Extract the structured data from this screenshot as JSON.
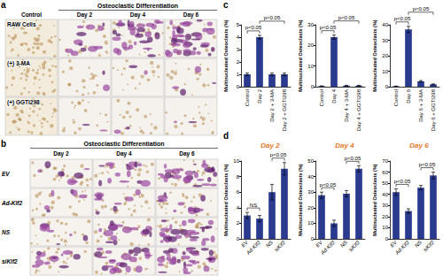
{
  "image_panels": [
    {
      "label": "a",
      "group_header": "Osteoclastic Differentiation",
      "ungrouped_columns": [
        "Control"
      ],
      "grouped_columns": [
        "Day 2",
        "Day 4",
        "Day 6"
      ],
      "rows": [
        "RAW Cells",
        "(+) 3-MA",
        "(+) GGTI298"
      ]
    },
    {
      "label": "b",
      "group_header": "Osteoclastic Differentiation",
      "grouped_columns": [
        "Day 2",
        "Day 4",
        "Day 6"
      ],
      "rows": [
        "EV",
        "Ad-Klf2",
        "NS",
        "siKlf2"
      ]
    }
  ],
  "chart_data": [
    {
      "type": "bar",
      "panel": "c",
      "y_label": "Multinucleated Osteoclasts (%)",
      "categories": [
        "Control",
        "Day 2",
        "Day 2 + 3-MA",
        "Day 2 + GGTI298"
      ],
      "values": [
        1.0,
        4.0,
        1.0,
        1.0
      ],
      "errors": [
        0.1,
        0.15,
        0.1,
        0.1
      ],
      "color": "#2a3b8f",
      "ylim": [
        0,
        5
      ],
      "yticks": [
        0,
        1,
        2,
        3,
        4,
        5
      ],
      "grid": false,
      "annotations": [
        {
          "text": "p<0.05",
          "between": [
            "Control",
            "Day 2"
          ]
        },
        {
          "text": "p<0.05",
          "between": [
            "Day 2",
            "Day 2 + GGTI298"
          ]
        }
      ]
    },
    {
      "type": "bar",
      "y_label": "Multinucleated Osteoclasts (%)",
      "categories": [
        "Control",
        "Day 4",
        "Day 4 + 3-MA",
        "Day 4 + GGTI298"
      ],
      "values": [
        0.3,
        24,
        0.5,
        0.5
      ],
      "errors": [
        0.1,
        1,
        0.2,
        0.2
      ],
      "color": "#2a3b8f",
      "ylim": [
        0,
        30
      ],
      "yticks": [
        0,
        10,
        20,
        30
      ],
      "grid": false,
      "annotations": [
        {
          "text": "p<0.05",
          "between": [
            "Control",
            "Day 4"
          ]
        },
        {
          "text": "p<0.05",
          "between": [
            "Day 4",
            "Day 4 + GGTI298"
          ]
        }
      ]
    },
    {
      "type": "bar",
      "y_label": "Multinucleated Osteoclasts (%)",
      "categories": [
        "Control",
        "Day 6",
        "Day 6 + 3-MA",
        "Day 6 + GGTI298"
      ],
      "values": [
        0.3,
        37,
        3.5,
        1.5
      ],
      "errors": [
        0.1,
        2,
        0.5,
        0.3
      ],
      "color": "#2a3b8f",
      "ylim": [
        0,
        40
      ],
      "yticks": [
        0,
        10,
        20,
        30,
        40
      ],
      "grid": false,
      "annotations": [
        {
          "text": "p<0.05",
          "between": [
            "Control",
            "Day 6"
          ]
        },
        {
          "text": "p<0.05",
          "between": [
            "Day 6",
            "Day 6 + GGTI298"
          ]
        }
      ]
    },
    {
      "type": "bar",
      "panel": "d",
      "title": "Day 2",
      "y_label": "Multinucleated Osteoclasts (%)",
      "categories": [
        "EV",
        "Ad-Klf2",
        "NS",
        "siKlf2"
      ],
      "values": [
        3,
        2.6,
        6,
        9
      ],
      "errors": [
        0.4,
        0.4,
        1,
        0.8
      ],
      "color": "#2a3b8f",
      "ylim": [
        0,
        10
      ],
      "yticks": [
        0,
        2,
        4,
        6,
        8,
        10
      ],
      "grid": false,
      "annotations": [
        {
          "text": "NS",
          "between": [
            "EV",
            "Ad-Klf2"
          ]
        },
        {
          "text": "p<0.05",
          "between": [
            "NS",
            "siKlf2"
          ]
        }
      ]
    },
    {
      "type": "bar",
      "title": "Day 4",
      "y_label": "Multinucleated Osteoclasts (%)",
      "categories": [
        "EV",
        "Ad-Klf2",
        "NS",
        "siKlf2"
      ],
      "values": [
        28,
        10,
        29,
        45
      ],
      "errors": [
        2,
        2,
        2,
        2
      ],
      "color": "#2a3b8f",
      "ylim": [
        0,
        50
      ],
      "yticks": [
        0,
        10,
        20,
        30,
        40,
        50
      ],
      "grid": false,
      "annotations": [
        {
          "text": "p<0.05",
          "between": [
            "EV",
            "Ad-Klf2"
          ]
        },
        {
          "text": "p<0.05",
          "between": [
            "NS",
            "siKlf2"
          ]
        }
      ]
    },
    {
      "type": "bar",
      "title": "Day 6",
      "y_label": "Multinucleated Osteoclasts (%)",
      "categories": [
        "EV",
        "Ad-Klf2",
        "NS",
        "siKlf2"
      ],
      "values": [
        42,
        25,
        46,
        57
      ],
      "errors": [
        3,
        2,
        2,
        3
      ],
      "color": "#2a3b8f",
      "ylim": [
        0,
        70
      ],
      "yticks": [
        0,
        10,
        20,
        30,
        40,
        50,
        60,
        70
      ],
      "grid": false,
      "annotations": [
        {
          "text": "p<0.05",
          "between": [
            "EV",
            "Ad-Klf2"
          ]
        },
        {
          "text": "p<0.05",
          "between": [
            "NS",
            "siKlf2"
          ]
        }
      ]
    }
  ]
}
